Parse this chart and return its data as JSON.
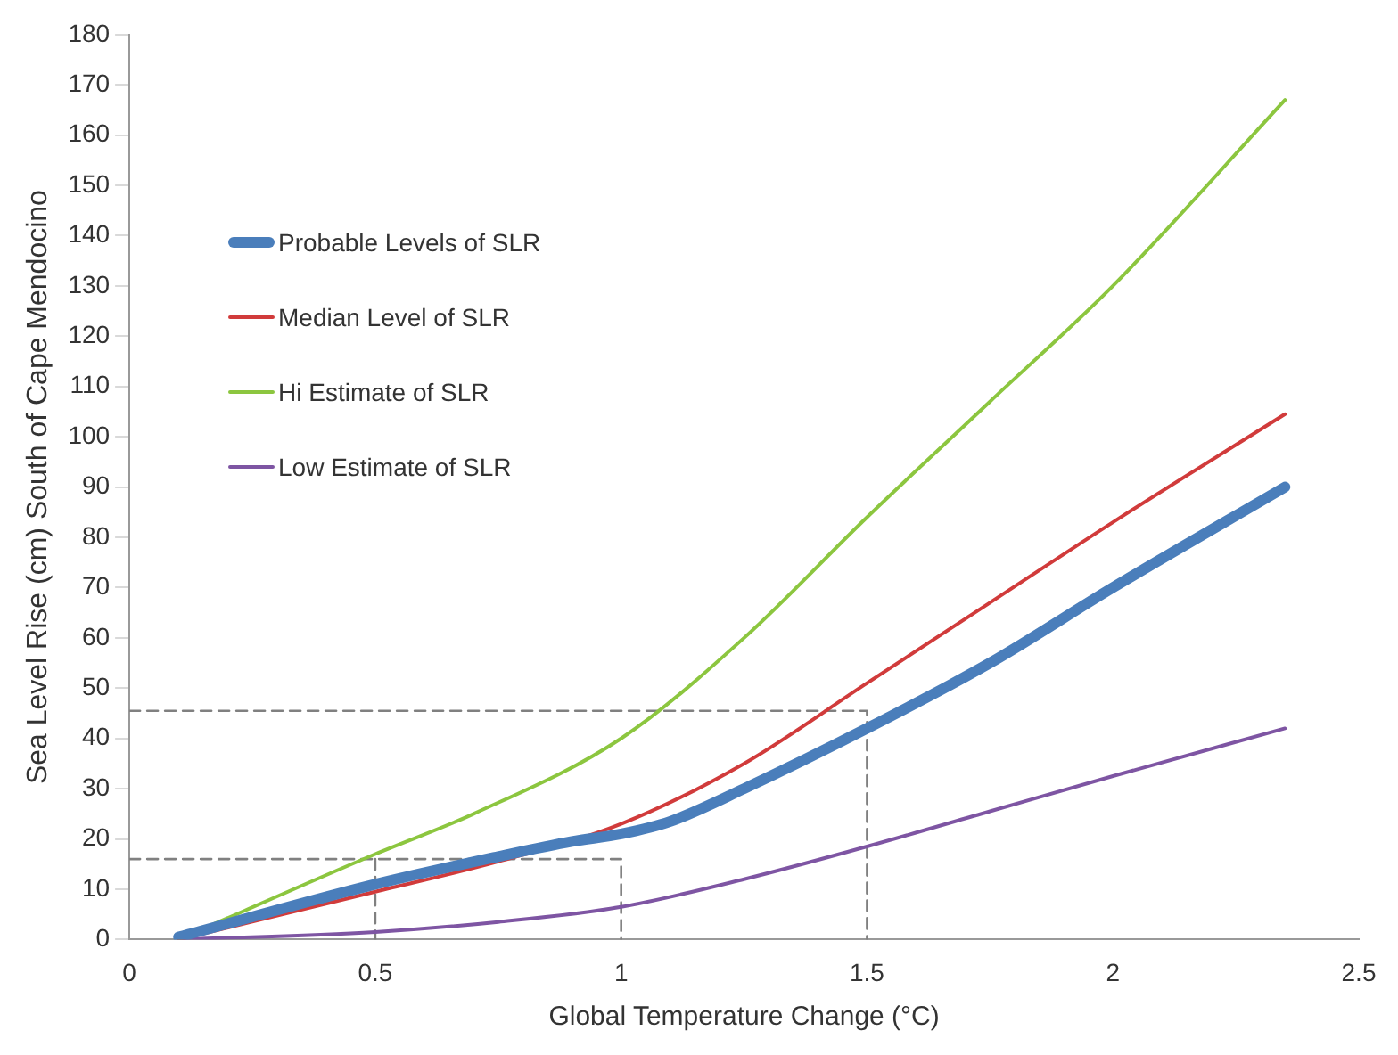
{
  "chart_data": {
    "type": "line",
    "xlabel": "Global Temperature Change (°C)",
    "ylabel": "Sea Level Rise (cm) South of Cape Mendocino",
    "xlim": [
      0,
      2.5
    ],
    "xticks": [
      0,
      0.5,
      1,
      1.5,
      2,
      2.5
    ],
    "ylim": [
      0,
      180
    ],
    "yticks": [
      0,
      10,
      20,
      30,
      40,
      50,
      60,
      70,
      80,
      90,
      100,
      110,
      120,
      130,
      140,
      150,
      160,
      170,
      180
    ],
    "grid": false,
    "legend": "left",
    "marker": "none",
    "series": [
      {
        "name": "Probable Levels of SLR",
        "color": "#4a7ebb",
        "x": [
          0.1,
          0.5,
          0.75,
          0.9,
          1.0,
          1.1,
          1.25,
          1.5,
          1.75,
          2.0,
          2.35
        ],
        "values": [
          0.5,
          11,
          16.5,
          19.5,
          21,
          23.5,
          30,
          42,
          55,
          70,
          90
        ]
      },
      {
        "name": "Median Level of SLR",
        "color": "#d13b3b",
        "x": [
          0.1,
          0.5,
          0.75,
          1.0,
          1.25,
          1.5,
          1.75,
          2.0,
          2.35
        ],
        "values": [
          0,
          9.5,
          15.5,
          23,
          35,
          51,
          67,
          83,
          104.5
        ]
      },
      {
        "name": "Hi Estimate of SLR",
        "color": "#8cc63f",
        "x": [
          0.1,
          0.5,
          0.7,
          1.0,
          1.25,
          1.5,
          1.75,
          2.0,
          2.35
        ],
        "values": [
          0,
          17,
          25,
          40,
          60,
          84,
          107,
          130,
          167
        ]
      },
      {
        "name": "Low Estimate of SLR",
        "color": "#7e55a3",
        "x": [
          0.1,
          0.5,
          0.75,
          1.0,
          1.25,
          1.5,
          1.75,
          2.0,
          2.35
        ],
        "values": [
          0,
          1.5,
          3.5,
          6.5,
          12,
          18.5,
          25.5,
          32.5,
          42
        ]
      },
      {
        "color": "#808080",
        "line_style": "dashed",
        "x": [
          0,
          1,
          1
        ],
        "values": [
          16,
          16,
          0
        ]
      },
      {
        "color": "#808080",
        "line_style": "dashed",
        "x": [
          0.5,
          0.5
        ],
        "values": [
          16,
          0
        ]
      },
      {
        "color": "#808080",
        "line_style": "dashed",
        "x": [
          0,
          1.5,
          1.5
        ],
        "values": [
          45.5,
          45.5,
          0
        ]
      }
    ]
  }
}
